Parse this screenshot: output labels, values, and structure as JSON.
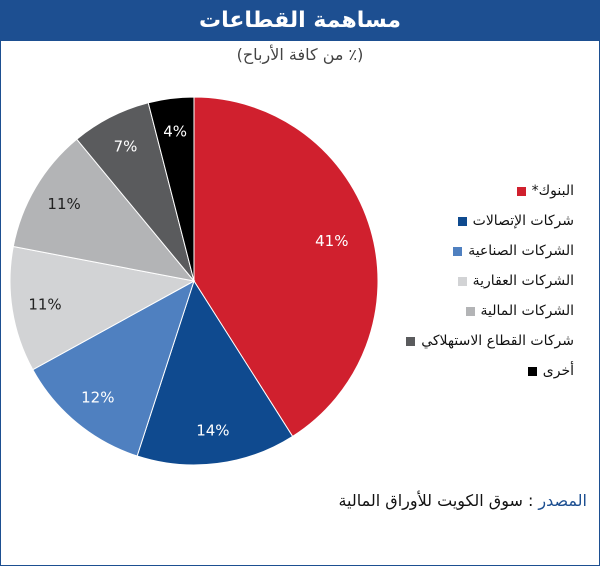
{
  "title": "مساهمة القطاعات",
  "subtitle": "(٪ من كافة الأرباح)",
  "source": {
    "label": "المصدر",
    "separator": " : ",
    "text": "سوق الكويت للأوراق المالية"
  },
  "chart_data": {
    "type": "pie",
    "unit": "%",
    "slices": [
      {
        "name": "البنوك*",
        "value": 41,
        "color": "#d0202e"
      },
      {
        "name": "شركات الإتصالات",
        "value": 14,
        "color": "#0f4a8f"
      },
      {
        "name": "الشركات الصناعية",
        "value": 12,
        "color": "#4f80c0"
      },
      {
        "name": "الشركات العقارية",
        "value": 11,
        "color": "#d2d3d5"
      },
      {
        "name": "الشركات المالية",
        "value": 11,
        "color": "#b3b4b6"
      },
      {
        "name": "شركات القطاع الاستهلاكي",
        "value": 7,
        "color": "#5a5b5d"
      },
      {
        "name": "أخرى",
        "value": 4,
        "color": "#000000"
      }
    ]
  }
}
